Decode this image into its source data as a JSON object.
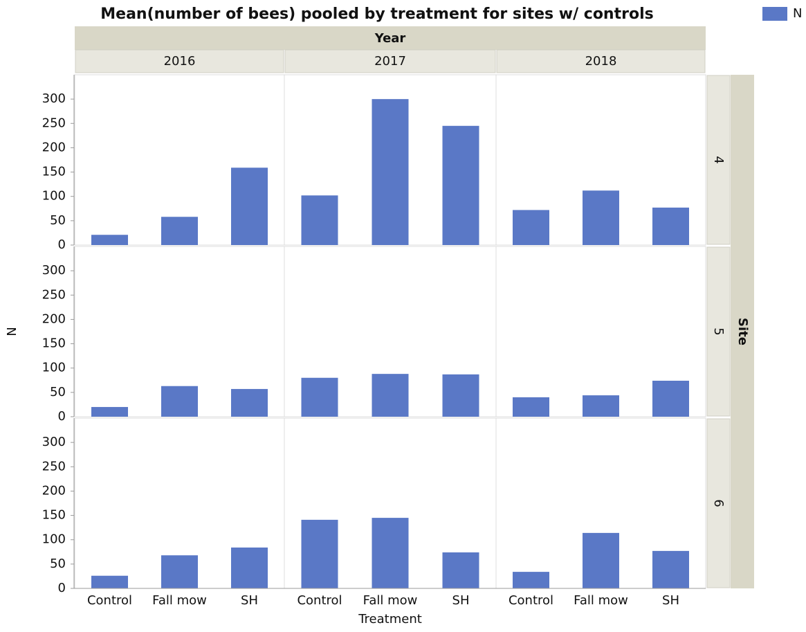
{
  "chart_data": {
    "type": "bar",
    "title": "Mean(number of bees) pooled by treatment for sites w/ controls",
    "x_label": "Treatment",
    "y_label": "N",
    "facets": {
      "columns": {
        "label": "Year",
        "values": [
          "2016",
          "2017",
          "2018"
        ]
      },
      "rows": {
        "label": "Site",
        "values": [
          "4",
          "5",
          "6"
        ]
      }
    },
    "categories": [
      "Control",
      "Fall mow",
      "SH"
    ],
    "series": [
      {
        "name": "N",
        "color": "#5a78c6",
        "values": [
          [
            [
              21,
              58,
              159
            ],
            [
              102,
              300,
              245
            ],
            [
              72,
              112,
              77
            ]
          ],
          [
            [
              20,
              63,
              57
            ],
            [
              80,
              88,
              87
            ],
            [
              40,
              44,
              74
            ]
          ],
          [
            [
              26,
              68,
              84
            ],
            [
              141,
              145,
              74
            ],
            [
              34,
              114,
              77
            ]
          ]
        ]
      }
    ],
    "ylim": [
      0,
      350
    ],
    "yticks": [
      0,
      50,
      100,
      150,
      200,
      250,
      300
    ],
    "grid": false,
    "legend": "top-right"
  }
}
